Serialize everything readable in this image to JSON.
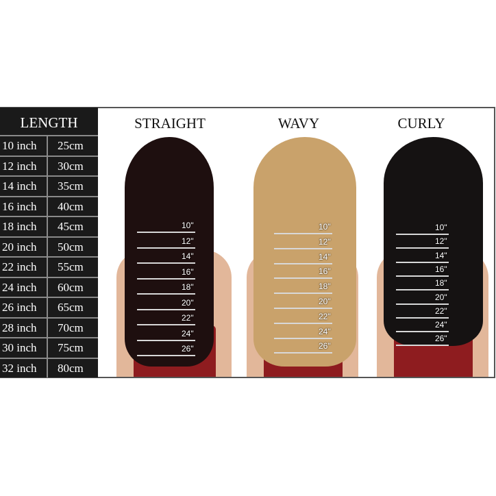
{
  "table": {
    "header": "LENGTH",
    "rows": [
      {
        "inch": "10 inch",
        "cm": "25cm"
      },
      {
        "inch": "12 inch",
        "cm": "30cm"
      },
      {
        "inch": "14 inch",
        "cm": "35cm"
      },
      {
        "inch": "16 inch",
        "cm": "40cm"
      },
      {
        "inch": "18 inch",
        "cm": "45cm"
      },
      {
        "inch": "20 inch",
        "cm": "50cm"
      },
      {
        "inch": "22 inch",
        "cm": "55cm"
      },
      {
        "inch": "24 inch",
        "cm": "60cm"
      },
      {
        "inch": "26 inch",
        "cm": "65cm"
      },
      {
        "inch": "28 inch",
        "cm": "70cm"
      },
      {
        "inch": "30 inch",
        "cm": "75cm"
      },
      {
        "inch": "32 inch",
        "cm": "80cm"
      }
    ]
  },
  "panels": [
    {
      "title": "STRAIGHT",
      "hair_color": "#1e0f0f",
      "markers": [
        "10\"",
        "12\"",
        "14\"",
        "16\"",
        "18\"",
        "20\"",
        "22\"",
        "24\"",
        "26\""
      ]
    },
    {
      "title": "WAVY",
      "hair_color": "#c9a26b",
      "markers": [
        "10\"",
        "12\"",
        "14\"",
        "16\"",
        "18\"",
        "20\"",
        "22\"",
        "24\"",
        "26\""
      ]
    },
    {
      "title": "CURLY",
      "hair_color": "#151212",
      "markers": [
        "10\"",
        "12\"",
        "14\"",
        "16\"",
        "18\"",
        "20\"",
        "22\"",
        "24\"",
        "26\""
      ]
    }
  ]
}
